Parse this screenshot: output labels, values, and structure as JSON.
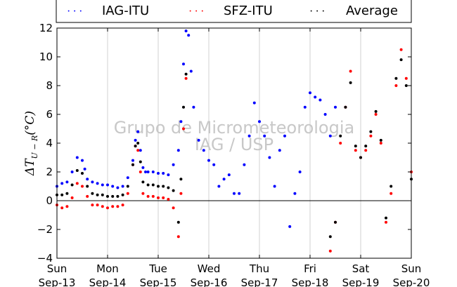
{
  "chart_data": {
    "type": "scatter",
    "title": "",
    "ylabel": "ΔT_{U-R}(°C)",
    "ylim": [
      -4,
      12
    ],
    "yticks": [
      -4,
      -2,
      0,
      2,
      4,
      6,
      8,
      10,
      12
    ],
    "xlim": [
      0,
      7
    ],
    "xticks": [
      {
        "x": 0,
        "day": "Sun",
        "date": "Sep-13"
      },
      {
        "x": 1,
        "day": "Mon",
        "date": "Sep-14"
      },
      {
        "x": 2,
        "day": "Tue",
        "date": "Sep-15"
      },
      {
        "x": 3,
        "day": "Wed",
        "date": "Sep-16"
      },
      {
        "x": 4,
        "day": "Thu",
        "date": "Sep-17"
      },
      {
        "x": 5,
        "day": "Fri",
        "date": "Sep-18"
      },
      {
        "x": 6,
        "day": "Sat",
        "date": "Sep-19"
      },
      {
        "x": 7,
        "day": "Sun",
        "date": "Sep-20"
      }
    ],
    "grid": "vertical",
    "zero_line": 0,
    "legend": "top",
    "watermark": [
      "Grupo de Micrometeorologia",
      "IAG / USP"
    ],
    "series": [
      {
        "name": "IAG-ITU",
        "color": "#0000ff",
        "x": [
          0.0,
          0.1,
          0.2,
          0.3,
          0.4,
          0.5,
          0.55,
          0.6,
          0.7,
          0.8,
          0.9,
          1.0,
          1.1,
          1.2,
          1.3,
          1.4,
          1.5,
          1.55,
          1.6,
          1.65,
          1.7,
          1.75,
          1.8,
          1.9,
          2.0,
          2.1,
          2.2,
          2.3,
          2.4,
          2.45,
          2.5,
          2.55,
          2.6,
          2.65,
          2.7,
          2.8,
          2.9,
          3.0,
          3.1,
          3.2,
          3.3,
          3.4,
          3.5,
          3.6,
          3.7,
          3.8,
          3.9,
          4.0,
          4.1,
          4.2,
          4.3,
          4.4,
          4.5,
          4.6,
          4.7,
          4.8,
          4.9,
          5.0,
          5.1,
          5.2,
          5.3,
          5.4,
          5.5
        ],
        "y": [
          1.0,
          1.2,
          1.3,
          2.0,
          3.0,
          2.8,
          2.2,
          1.5,
          1.3,
          1.2,
          1.1,
          1.1,
          1.0,
          0.9,
          1.0,
          1.6,
          2.8,
          4.2,
          4.8,
          3.5,
          2.3,
          2.0,
          2.0,
          2.0,
          1.9,
          1.9,
          1.8,
          2.5,
          3.5,
          5.5,
          9.5,
          11.8,
          11.5,
          9.0,
          6.5,
          4.2,
          3.5,
          2.8,
          2.5,
          1.0,
          1.5,
          1.8,
          0.5,
          0.5,
          2.5,
          4.5,
          6.8,
          5.5,
          4.5,
          3.0,
          1.0,
          3.5,
          4.5,
          -1.8,
          0.5,
          2.0,
          6.5,
          7.5,
          7.2,
          7.0,
          6.0,
          4.5,
          6.5
        ]
      },
      {
        "name": "SFZ-ITU",
        "color": "#ff0000",
        "x": [
          0.0,
          0.1,
          0.2,
          0.3,
          0.4,
          0.5,
          0.6,
          0.7,
          0.8,
          0.9,
          1.0,
          1.1,
          1.2,
          1.3,
          1.4,
          1.5,
          1.55,
          1.6,
          1.65,
          1.7,
          1.8,
          1.9,
          2.0,
          2.1,
          2.2,
          2.3,
          2.4,
          2.45,
          2.5,
          2.55,
          5.4,
          5.5,
          5.6,
          5.7,
          5.8,
          5.9,
          6.0,
          6.1,
          6.2,
          6.3,
          6.4,
          6.5,
          6.6,
          6.7,
          6.8,
          6.9,
          7.0
        ],
        "y": [
          -0.3,
          -0.5,
          -0.4,
          0.2,
          1.2,
          1.0,
          0.3,
          -0.3,
          -0.3,
          -0.4,
          -0.5,
          -0.4,
          -0.4,
          -0.3,
          0.5,
          2.5,
          3.8,
          3.5,
          2.0,
          0.5,
          0.3,
          0.3,
          0.2,
          0.2,
          0.1,
          -0.5,
          -2.5,
          0.5,
          5.0,
          8.5,
          -3.5,
          -1.5,
          4.0,
          6.5,
          9.0,
          3.5,
          3.0,
          3.5,
          4.5,
          6.0,
          4.0,
          -1.5,
          0.5,
          8.0,
          10.5,
          8.5,
          2.0
        ]
      },
      {
        "name": "Average",
        "color": "#000000",
        "x": [
          0.0,
          0.1,
          0.2,
          0.3,
          0.4,
          0.5,
          0.6,
          0.7,
          0.8,
          0.9,
          1.0,
          1.1,
          1.2,
          1.3,
          1.4,
          1.5,
          1.55,
          1.6,
          1.65,
          1.7,
          1.8,
          1.9,
          2.0,
          2.1,
          2.2,
          2.3,
          2.4,
          2.45,
          2.5,
          2.55,
          5.4,
          5.5,
          5.6,
          5.7,
          5.8,
          5.9,
          6.0,
          6.1,
          6.2,
          6.3,
          6.4,
          6.5,
          6.6,
          6.7,
          6.8,
          6.9,
          7.0
        ],
        "y": [
          0.4,
          0.4,
          0.5,
          1.1,
          2.1,
          1.9,
          1.0,
          0.5,
          0.4,
          0.4,
          0.3,
          0.3,
          0.3,
          0.4,
          1.0,
          2.5,
          3.8,
          4.0,
          2.7,
          1.3,
          1.1,
          1.1,
          1.0,
          1.0,
          0.9,
          0.7,
          -1.5,
          1.5,
          6.5,
          8.8,
          -2.5,
          -1.5,
          4.5,
          6.5,
          8.2,
          3.8,
          3.0,
          3.8,
          4.8,
          6.2,
          4.2,
          -1.2,
          1.0,
          8.5,
          9.8,
          8.0,
          1.5
        ]
      }
    ]
  }
}
